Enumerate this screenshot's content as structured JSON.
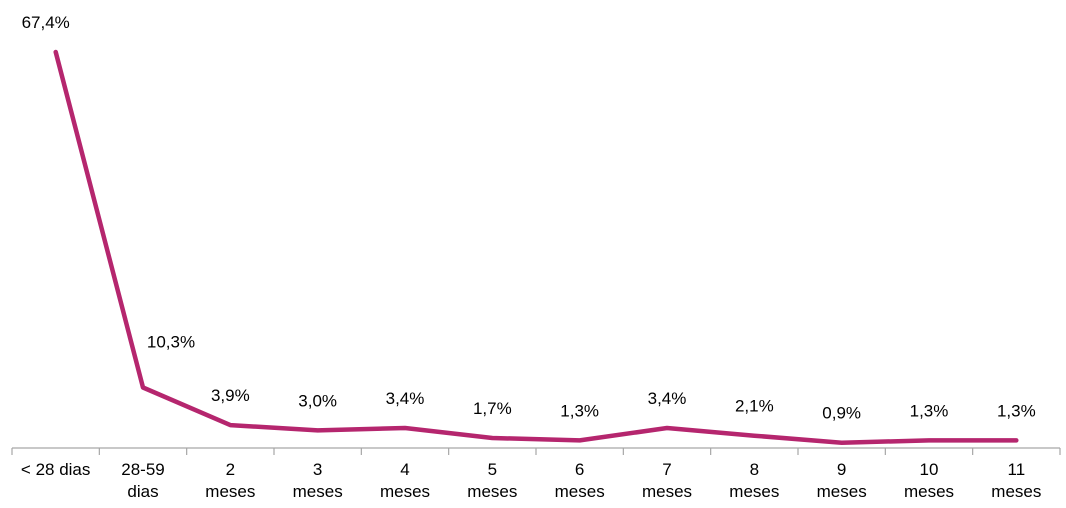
{
  "chart_data": {
    "type": "line",
    "categories": [
      [
        "< 28 dias"
      ],
      [
        "28-59",
        "dias"
      ],
      [
        "2",
        "meses"
      ],
      [
        "3",
        "meses"
      ],
      [
        "4",
        "meses"
      ],
      [
        "5",
        "meses"
      ],
      [
        "6",
        "meses"
      ],
      [
        "7",
        "meses"
      ],
      [
        "8",
        "meses"
      ],
      [
        "9",
        "meses"
      ],
      [
        "10",
        "meses"
      ],
      [
        "11",
        "meses"
      ]
    ],
    "values": [
      67.4,
      10.3,
      3.9,
      3.0,
      3.4,
      1.7,
      1.3,
      3.4,
      2.1,
      0.9,
      1.3,
      1.3
    ],
    "data_labels": [
      "67,4%",
      "10,3%",
      "3,9%",
      "3,0%",
      "3,4%",
      "1,7%",
      "1,3%",
      "3,4%",
      "2,1%",
      "0,9%",
      "1,3%",
      "1,3%"
    ],
    "ylim": [
      0,
      72
    ],
    "line_color": "#B5266E",
    "axis_color": "#A6A6A6",
    "grid": false,
    "legend": "none"
  }
}
